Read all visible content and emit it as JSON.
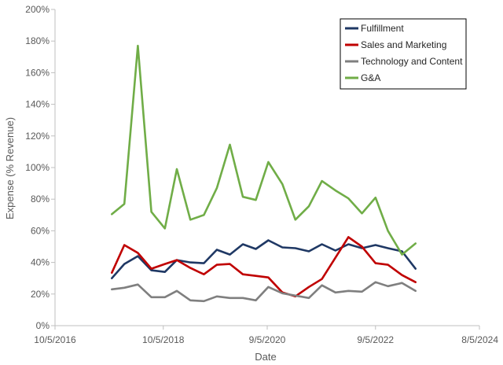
{
  "chart_data": {
    "type": "line",
    "title": "",
    "xlabel": "Date",
    "ylabel": "Expense (% Revenue)",
    "x_ticks": [
      "10/5/2016",
      "10/5/2018",
      "9/5/2020",
      "9/5/2022",
      "8/5/2024"
    ],
    "x_tick_years": [
      2016.76,
      2018.76,
      2020.68,
      2022.68,
      2024.6
    ],
    "xlim": [
      2016.76,
      2024.6
    ],
    "ylim": [
      0,
      200
    ],
    "y_ticks": [
      0,
      20,
      40,
      60,
      80,
      100,
      120,
      140,
      160,
      180,
      200
    ],
    "y_tick_labels": [
      "0%",
      "20%",
      "40%",
      "60%",
      "80%",
      "100%",
      "120%",
      "140%",
      "160%",
      "180%",
      "200%"
    ],
    "grid": false,
    "legend_position": "top-right",
    "x": [
      2017.81,
      2018.04,
      2018.29,
      2018.54,
      2018.79,
      2019.01,
      2019.26,
      2019.51,
      2019.75,
      2019.99,
      2020.23,
      2020.47,
      2020.7,
      2020.96,
      2021.2,
      2021.45,
      2021.69,
      2021.94,
      2022.18,
      2022.43,
      2022.68,
      2022.91,
      2023.17,
      2023.42
    ],
    "series": [
      {
        "name": "Fulfillment",
        "color": "#1f3864",
        "values": [
          30,
          39,
          44,
          35,
          34,
          41.5,
          40,
          39.5,
          48,
          45,
          51.5,
          48.5,
          54,
          49.5,
          49,
          47,
          51.5,
          47.5,
          51.5,
          49,
          51,
          49,
          47,
          36
        ]
      },
      {
        "name": "Sales and Marketing",
        "color": "#c00000",
        "values": [
          33.5,
          51,
          46,
          36,
          39,
          41.5,
          36.5,
          32.5,
          38.5,
          39,
          32.5,
          31.5,
          30.5,
          21,
          18.5,
          24.5,
          29.5,
          43,
          56,
          50,
          39.5,
          38.5,
          32,
          27.5
        ]
      },
      {
        "name": "Technology and Content",
        "color": "#7f7f7f",
        "values": [
          23,
          24,
          26,
          18,
          18,
          22,
          16,
          15.5,
          18.5,
          17.5,
          17.5,
          16,
          24.5,
          20.5,
          19,
          17.5,
          25.5,
          21,
          22,
          21.5,
          27.5,
          25,
          27,
          22
        ]
      },
      {
        "name": "G&A",
        "color": "#70ad47",
        "values": [
          70.5,
          77,
          177,
          72,
          61.5,
          99,
          67,
          70,
          87,
          114.5,
          81.5,
          79.5,
          103.5,
          89.5,
          67,
          75.5,
          91.5,
          85.5,
          80.5,
          71,
          81,
          60,
          45,
          52
        ]
      }
    ]
  }
}
